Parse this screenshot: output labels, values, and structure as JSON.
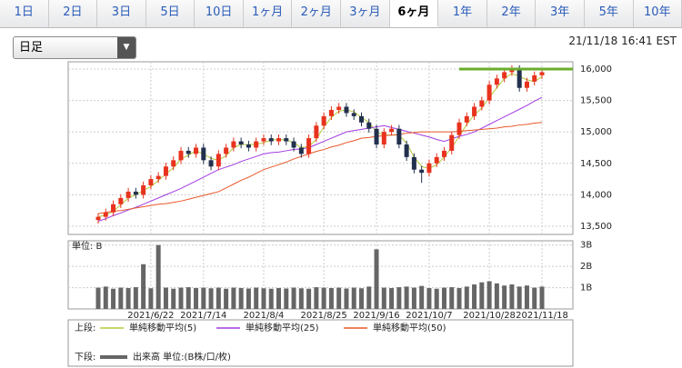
{
  "tabs": [
    "1日",
    "2日",
    "3日",
    "5日",
    "10日",
    "1ヶ月",
    "2ヶ月",
    "3ヶ月",
    "6ヶ月",
    "1年",
    "2年",
    "3年",
    "5年",
    "10年"
  ],
  "selected_tab": 8,
  "dropdown": "日足",
  "timestamp": "21/11/18 16:41 EST",
  "chart_data": {
    "type": "candlestick",
    "categories": [
      null,
      null,
      null,
      null,
      null,
      null,
      null,
      "2021/6/22",
      null,
      null,
      null,
      null,
      null,
      null,
      "2021/7/14",
      null,
      null,
      null,
      null,
      null,
      null,
      null,
      "2021/8/4",
      null,
      null,
      null,
      null,
      null,
      null,
      null,
      "2021/8/25",
      null,
      null,
      null,
      null,
      null,
      null,
      "2021/9/16",
      null,
      null,
      null,
      null,
      null,
      null,
      "2021/10/7",
      null,
      null,
      null,
      null,
      null,
      null,
      null,
      "2021/10/28",
      null,
      null,
      null,
      null,
      null,
      null,
      "2021/11/18"
    ],
    "ohlc": [
      [
        13600,
        13710,
        13540,
        13650
      ],
      [
        13650,
        13780,
        13590,
        13720
      ],
      [
        13720,
        13910,
        13660,
        13850
      ],
      [
        13850,
        14010,
        13790,
        13950
      ],
      [
        13950,
        14110,
        13890,
        14050
      ],
      [
        14050,
        14110,
        13940,
        14000
      ],
      [
        14000,
        14210,
        13940,
        14150
      ],
      [
        14150,
        14310,
        14090,
        14250
      ],
      [
        14250,
        14360,
        14190,
        14300
      ],
      [
        14300,
        14510,
        14240,
        14450
      ],
      [
        14450,
        14610,
        14390,
        14550
      ],
      [
        14550,
        14760,
        14490,
        14700
      ],
      [
        14700,
        14760,
        14590,
        14650
      ],
      [
        14650,
        14810,
        14590,
        14750
      ],
      [
        14750,
        14810,
        14490,
        14550
      ],
      [
        14550,
        14610,
        14390,
        14450
      ],
      [
        14450,
        14710,
        14390,
        14650
      ],
      [
        14650,
        14810,
        14590,
        14750
      ],
      [
        14750,
        14910,
        14690,
        14850
      ],
      [
        14850,
        14910,
        14740,
        14800
      ],
      [
        14800,
        14860,
        14690,
        14750
      ],
      [
        14750,
        14910,
        14690,
        14850
      ],
      [
        14850,
        14960,
        14790,
        14900
      ],
      [
        14900,
        14960,
        14790,
        14850
      ],
      [
        14850,
        14960,
        14790,
        14900
      ],
      [
        14900,
        14960,
        14790,
        14850
      ],
      [
        14850,
        14910,
        14690,
        14750
      ],
      [
        14750,
        14810,
        14590,
        14650
      ],
      [
        14650,
        14960,
        14590,
        14900
      ],
      [
        14900,
        15160,
        14840,
        15100
      ],
      [
        15100,
        15310,
        15040,
        15250
      ],
      [
        15250,
        15410,
        15190,
        15350
      ],
      [
        15350,
        15460,
        15290,
        15400
      ],
      [
        15400,
        15460,
        15240,
        15300
      ],
      [
        15300,
        15360,
        15190,
        15250
      ],
      [
        15250,
        15310,
        15090,
        15150
      ],
      [
        15150,
        15210,
        14990,
        15050
      ],
      [
        15050,
        15110,
        14740,
        14800
      ],
      [
        14800,
        15060,
        14740,
        15000
      ],
      [
        15000,
        15110,
        14940,
        15050
      ],
      [
        15050,
        15110,
        14740,
        14800
      ],
      [
        14800,
        14860,
        14540,
        14600
      ],
      [
        14600,
        14660,
        14340,
        14400
      ],
      [
        14400,
        14460,
        14190,
        14350
      ],
      [
        14350,
        14560,
        14290,
        14500
      ],
      [
        14500,
        14660,
        14440,
        14600
      ],
      [
        14600,
        14760,
        14540,
        14700
      ],
      [
        14700,
        15010,
        14640,
        14950
      ],
      [
        14950,
        15210,
        14890,
        15150
      ],
      [
        15150,
        15310,
        15090,
        15250
      ],
      [
        15250,
        15460,
        15190,
        15400
      ],
      [
        15400,
        15560,
        15340,
        15500
      ],
      [
        15500,
        15810,
        15440,
        15750
      ],
      [
        15750,
        15910,
        15690,
        15850
      ],
      [
        15850,
        16010,
        15790,
        15950
      ],
      [
        15950,
        16060,
        15890,
        16000
      ],
      [
        16000,
        16060,
        15640,
        15700
      ],
      [
        15700,
        15860,
        15640,
        15800
      ],
      [
        15800,
        15960,
        15740,
        15900
      ],
      [
        15900,
        16010,
        15840,
        15950
      ]
    ],
    "up_color": "#e8321e",
    "down_color": "#22304e",
    "series": [
      {
        "name": "単純移動平均(5)",
        "color": "#b5c93a",
        "values": [
          13650,
          13680,
          13740,
          13840,
          13950,
          14000,
          14070,
          14130,
          14230,
          14330,
          14430,
          14570,
          14630,
          14700,
          14650,
          14580,
          14550,
          14620,
          14750,
          14800,
          14800,
          14800,
          14830,
          14870,
          14880,
          14870,
          14830,
          14750,
          14770,
          14880,
          15080,
          15230,
          15330,
          15350,
          15320,
          15230,
          15150,
          15000,
          14950,
          14950,
          14950,
          14820,
          14600,
          14450,
          14420,
          14480,
          14600,
          14750,
          14930,
          15120,
          15270,
          15380,
          15550,
          15700,
          15850,
          15930,
          15880,
          15830,
          15800,
          15880
        ]
      },
      {
        "name": "単純移動平均(25)",
        "color": "#a23be0",
        "values": [
          13580,
          13620,
          13670,
          13710,
          13760,
          13800,
          13850,
          13900,
          13950,
          14000,
          14050,
          14100,
          14160,
          14220,
          14280,
          14340,
          14400,
          14440,
          14480,
          14530,
          14570,
          14610,
          14650,
          14670,
          14680,
          14700,
          14720,
          14730,
          14750,
          14800,
          14850,
          14900,
          14950,
          15000,
          15020,
          15040,
          15060,
          15080,
          15100,
          15070,
          15040,
          15010,
          14980,
          14950,
          14920,
          14880,
          14850,
          14890,
          14930,
          14960,
          15000,
          15060,
          15120,
          15180,
          15240,
          15300,
          15360,
          15420,
          15490,
          15550
        ]
      },
      {
        "name": "単純移動平均(50)",
        "color": "#e8582a",
        "values": [
          13700,
          13720,
          13740,
          13750,
          13770,
          13790,
          13810,
          13830,
          13850,
          13860,
          13880,
          13900,
          13930,
          13960,
          13990,
          14020,
          14050,
          14110,
          14170,
          14230,
          14280,
          14340,
          14400,
          14440,
          14480,
          14520,
          14570,
          14610,
          14650,
          14690,
          14720,
          14760,
          14790,
          14830,
          14860,
          14900,
          14910,
          14930,
          14940,
          14950,
          14960,
          14980,
          14990,
          15000,
          15000,
          15000,
          15000,
          15000,
          15010,
          15020,
          15030,
          15040,
          15050,
          15060,
          15080,
          15090,
          15110,
          15120,
          15140,
          15150
        ]
      }
    ],
    "ylim": [
      13370,
      16115
    ],
    "yticks": [
      {
        "value": 13500,
        "label": "13,500"
      },
      {
        "value": 14000,
        "label": "14,000"
      },
      {
        "value": 14500,
        "label": "14,500"
      },
      {
        "value": 15000,
        "label": "15,000"
      },
      {
        "value": 15500,
        "label": "15,500"
      },
      {
        "value": 16000,
        "label": "16,000"
      }
    ],
    "hline": {
      "value": 16000,
      "color": "#6aad2c"
    },
    "grid": true,
    "volume": {
      "unit_label": "単位: B",
      "name": "出来高 単位:(B株/口/枚)",
      "color": "#666666",
      "values": [
        1.0,
        1.05,
        0.95,
        1.0,
        0.98,
        1.02,
        2.1,
        0.97,
        3.0,
        1.0,
        0.95,
        1.0,
        1.02,
        0.98,
        1.0,
        0.97,
        1.0,
        0.95,
        1.0,
        0.98,
        0.96,
        1.0,
        0.97,
        0.95,
        0.98,
        0.96,
        1.0,
        0.97,
        0.95,
        1.02,
        1.0,
        0.98,
        1.0,
        0.96,
        1.0,
        0.97,
        1.05,
        2.8,
        1.0,
        0.98,
        1.02,
        1.05,
        1.0,
        1.08,
        0.98,
        0.95,
        1.0,
        1.02,
        0.98,
        1.05,
        1.15,
        1.25,
        1.3,
        1.2,
        1.1,
        1.15,
        1.05,
        1.1,
        1.0,
        1.05
      ],
      "ylim": [
        0,
        3.2
      ],
      "yticks": [
        {
          "value": 1,
          "label": "1B"
        },
        {
          "value": 2,
          "label": "2B"
        },
        {
          "value": 3,
          "label": "3B"
        }
      ]
    },
    "legend": {
      "upper": "上段:",
      "lower": "下段:"
    }
  }
}
